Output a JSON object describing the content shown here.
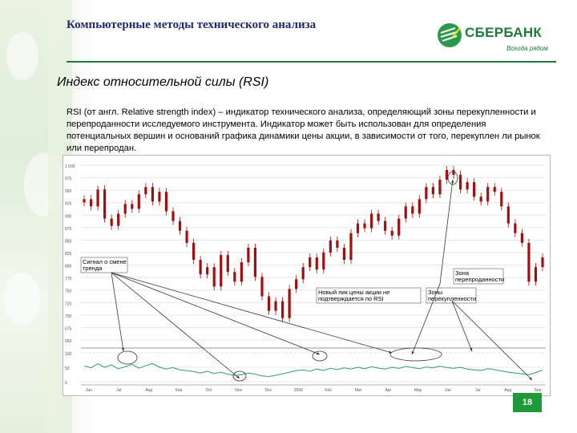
{
  "slide": {
    "title": "Компьютерные методы технического анализа",
    "subtitle": "Индекс относительной силы (RSI)",
    "description": "RSI (от англ. Relative strength index) – индикатор технического анализа, определяющий зоны перекупленности и перепроданности исследуемого инструмента. Индикатор может быть использован для определения потенциальных вершин и оснований графика динамики цены акции, в зависимости от того, перекуплен ли рынок или перепродан.",
    "page_number": "18"
  },
  "logo": {
    "name": "СБЕРБАНК",
    "slogan": "Всегда рядом"
  },
  "annotations": {
    "trend_signal": "Сигнал о смене тренда",
    "overbought": "Зона перепроданности",
    "new_peak": "Новый пик цены акции не подтверждается по RSI",
    "oversold": "Зона перекупленности"
  },
  "colors": {
    "brand_green": "#1f7a3a",
    "title_blue": "#1f2a6b",
    "candle": "#a01010",
    "rsi_line": "#2f9a7a",
    "page_badge": "#1f9a3a"
  },
  "chart_data": {
    "type": "line",
    "title": "",
    "panels": [
      "price",
      "rsi"
    ],
    "price_series": {
      "name": "",
      "values": [
        58,
        55,
        62,
        50,
        47,
        52,
        56,
        54,
        60,
        63,
        57,
        61,
        53,
        49,
        45,
        40,
        33,
        27,
        30,
        22,
        35,
        28,
        24,
        32,
        38,
        26,
        18,
        12,
        16,
        9,
        21,
        25,
        30,
        34,
        29,
        36,
        41,
        38,
        33,
        44,
        48,
        46,
        52,
        49,
        45,
        43,
        50,
        55,
        52,
        58,
        63,
        60,
        66,
        70,
        68,
        62,
        65,
        59,
        57,
        63,
        61,
        55,
        48,
        44,
        40,
        24,
        30,
        34
      ]
    },
    "rsi_series": {
      "name": "",
      "values": [
        55,
        48,
        62,
        50,
        58,
        45,
        52,
        60,
        47,
        55,
        63,
        50,
        44,
        49,
        41,
        38,
        35,
        30,
        36,
        28,
        33,
        26,
        22,
        24,
        30,
        26,
        20,
        18,
        22,
        27,
        33,
        38,
        41,
        36,
        44,
        39,
        46,
        42,
        48,
        44,
        50,
        45,
        52,
        47,
        44,
        50,
        46,
        53,
        49,
        45,
        51,
        48,
        54,
        49,
        46,
        50,
        44,
        41,
        39,
        45,
        42,
        37,
        33,
        30,
        27,
        24,
        32,
        40
      ]
    },
    "price_ylabels": [
      "1 000",
      "975",
      "950",
      "925",
      "900",
      "875",
      "850",
      "825",
      "800",
      "775",
      "750",
      "725",
      "700",
      "675",
      "650"
    ],
    "rsi_ylabels": [
      "100",
      "50",
      "0"
    ],
    "xlabels": [
      "Jun",
      "Jul",
      "Aug",
      "Sep",
      "Oct",
      "Nov",
      "Dec",
      "2006",
      "Feb",
      "Mar",
      "Apr",
      "May",
      "Jun",
      "Jul",
      "Aug",
      "Sep"
    ],
    "grid": true
  }
}
